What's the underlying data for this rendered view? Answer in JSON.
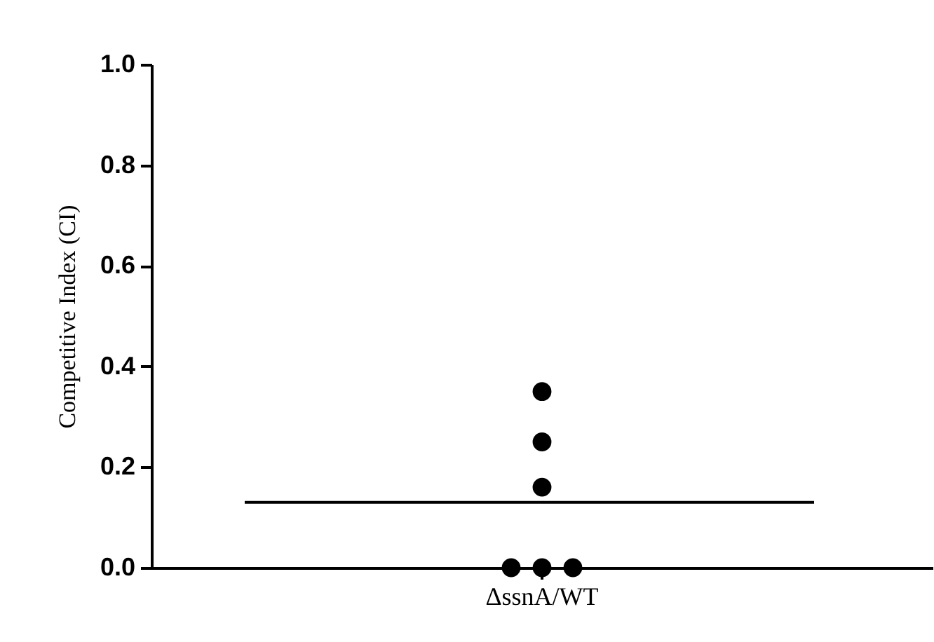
{
  "chart_data": {
    "type": "scatter",
    "ylabel": "Competitive Index (CI)",
    "categories": [
      "ΔssnA/WT"
    ],
    "series": [
      {
        "color": "#000000",
        "x": [
          "ΔssnA/WT",
          "ΔssnA/WT",
          "ΔssnA/WT",
          "ΔssnA/WT",
          "ΔssnA/WT",
          "ΔssnA/WT"
        ],
        "values": [
          0.35,
          0.25,
          0.16,
          0,
          0,
          0
        ]
      }
    ],
    "ylim": [
      0,
      1
    ],
    "yticks": [
      {
        "value": 0,
        "label": "0.0"
      },
      {
        "value": 0.2,
        "label": "0.2"
      },
      {
        "value": 0.4,
        "label": "0.4"
      },
      {
        "value": 0.6,
        "label": "0.6"
      },
      {
        "value": 0.8,
        "label": "0.8"
      },
      {
        "value": 1,
        "label": "1.0"
      }
    ],
    "ref_lines": [
      {
        "axis": "y",
        "value": 0.13,
        "color": "#000000"
      }
    ],
    "marker": "circle",
    "grid": false
  }
}
